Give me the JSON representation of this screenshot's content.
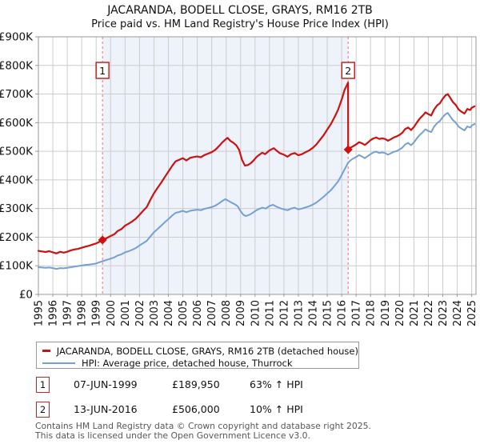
{
  "title": "JACARANDA, BODELL CLOSE, GRAYS, RM16 2TB",
  "subtitle": "Price paid vs. HM Land Registry's House Price Index (HPI)",
  "colors": {
    "property_line": "#cc1111",
    "hpi_line": "#74a0d4",
    "sale_dashed_line": "#f38080",
    "band_fill": "#eef2fb",
    "grid": "#cccccc",
    "frame": "#999999",
    "marker_box_border": "#c22222",
    "footer_text": "#575757"
  },
  "chart_data": {
    "type": "line",
    "title": "JACARANDA, BODELL CLOSE, GRAYS, RM16 2TB — Price paid vs. HPI",
    "xlabel": "",
    "ylabel": "",
    "x_range": [
      1995,
      2025.3
    ],
    "ylim": [
      0,
      900000
    ],
    "grid": true,
    "legend_position": "bottom",
    "y_tick_values": [
      0,
      100,
      200,
      300,
      400,
      500,
      600,
      700,
      800,
      900
    ],
    "y_tick_labels": [
      "£0",
      "£100K",
      "£200K",
      "£300K",
      "£400K",
      "£500K",
      "£600K",
      "£700K",
      "£800K",
      "£900K"
    ],
    "x_ticks": [
      1995,
      1996,
      1997,
      1998,
      1999,
      2000,
      2001,
      2002,
      2003,
      2004,
      2005,
      2006,
      2007,
      2008,
      2009,
      2010,
      2011,
      2012,
      2013,
      2014,
      2015,
      2016,
      2017,
      2018,
      2019,
      2020,
      2021,
      2022,
      2023,
      2024,
      2025
    ],
    "band": {
      "from": 1999.44,
      "to": 2016.45
    },
    "value_unit": "GBP thousands",
    "series": [
      {
        "name": "JACARANDA, BODELL CLOSE, GRAYS, RM16 2TB (detached house)",
        "color": "#cc1111",
        "points": [
          [
            1995.0,
            152
          ],
          [
            1995.25,
            150
          ],
          [
            1995.5,
            148
          ],
          [
            1995.75,
            151
          ],
          [
            1996.0,
            147
          ],
          [
            1996.25,
            143
          ],
          [
            1996.5,
            149
          ],
          [
            1996.75,
            146
          ],
          [
            1997.0,
            149
          ],
          [
            1997.25,
            154
          ],
          [
            1997.5,
            157
          ],
          [
            1997.75,
            159
          ],
          [
            1998.0,
            163
          ],
          [
            1998.25,
            167
          ],
          [
            1998.5,
            170
          ],
          [
            1998.75,
            174
          ],
          [
            1999.0,
            178
          ],
          [
            1999.2,
            183
          ],
          [
            1999.44,
            190
          ],
          [
            1999.7,
            196
          ],
          [
            2000.0,
            204
          ],
          [
            2000.25,
            210
          ],
          [
            2000.5,
            222
          ],
          [
            2000.75,
            228
          ],
          [
            2001.0,
            240
          ],
          [
            2001.25,
            247
          ],
          [
            2001.5,
            255
          ],
          [
            2001.75,
            265
          ],
          [
            2002.0,
            278
          ],
          [
            2002.25,
            292
          ],
          [
            2002.5,
            305
          ],
          [
            2002.75,
            330
          ],
          [
            2003.0,
            353
          ],
          [
            2003.25,
            372
          ],
          [
            2003.5,
            390
          ],
          [
            2003.75,
            410
          ],
          [
            2004.0,
            429
          ],
          [
            2004.25,
            448
          ],
          [
            2004.5,
            465
          ],
          [
            2004.75,
            470
          ],
          [
            2005.0,
            476
          ],
          [
            2005.25,
            468
          ],
          [
            2005.5,
            477
          ],
          [
            2005.75,
            480
          ],
          [
            2006.0,
            482
          ],
          [
            2006.25,
            479
          ],
          [
            2006.5,
            487
          ],
          [
            2006.75,
            492
          ],
          [
            2007.0,
            497
          ],
          [
            2007.25,
            505
          ],
          [
            2007.5,
            518
          ],
          [
            2007.75,
            532
          ],
          [
            2007.95,
            541
          ],
          [
            2008.1,
            547
          ],
          [
            2008.3,
            536
          ],
          [
            2008.5,
            530
          ],
          [
            2008.7,
            521
          ],
          [
            2008.9,
            505
          ],
          [
            2009.1,
            470
          ],
          [
            2009.3,
            450
          ],
          [
            2009.5,
            452
          ],
          [
            2009.7,
            458
          ],
          [
            2009.9,
            468
          ],
          [
            2010.1,
            480
          ],
          [
            2010.3,
            488
          ],
          [
            2010.5,
            495
          ],
          [
            2010.7,
            490
          ],
          [
            2011.0,
            503
          ],
          [
            2011.3,
            511
          ],
          [
            2011.5,
            502
          ],
          [
            2011.7,
            494
          ],
          [
            2012.0,
            488
          ],
          [
            2012.25,
            481
          ],
          [
            2012.5,
            490
          ],
          [
            2012.75,
            494
          ],
          [
            2013.0,
            486
          ],
          [
            2013.25,
            490
          ],
          [
            2013.5,
            497
          ],
          [
            2013.75,
            503
          ],
          [
            2014.0,
            512
          ],
          [
            2014.25,
            524
          ],
          [
            2014.5,
            540
          ],
          [
            2014.75,
            556
          ],
          [
            2015.0,
            576
          ],
          [
            2015.25,
            595
          ],
          [
            2015.5,
            619
          ],
          [
            2015.75,
            645
          ],
          [
            2016.0,
            681
          ],
          [
            2016.2,
            714
          ],
          [
            2016.44,
            740
          ],
          [
            2016.45,
            506
          ],
          [
            2016.6,
            512
          ],
          [
            2016.8,
            518
          ],
          [
            2017.0,
            524
          ],
          [
            2017.2,
            532
          ],
          [
            2017.4,
            528
          ],
          [
            2017.6,
            522
          ],
          [
            2017.8,
            530
          ],
          [
            2018.0,
            539
          ],
          [
            2018.2,
            545
          ],
          [
            2018.4,
            548
          ],
          [
            2018.6,
            543
          ],
          [
            2018.8,
            545
          ],
          [
            2019.0,
            543
          ],
          [
            2019.2,
            537
          ],
          [
            2019.4,
            542
          ],
          [
            2019.6,
            548
          ],
          [
            2019.8,
            552
          ],
          [
            2020.0,
            557
          ],
          [
            2020.2,
            565
          ],
          [
            2020.4,
            578
          ],
          [
            2020.6,
            583
          ],
          [
            2020.8,
            574
          ],
          [
            2021.0,
            585
          ],
          [
            2021.2,
            600
          ],
          [
            2021.4,
            614
          ],
          [
            2021.6,
            624
          ],
          [
            2021.8,
            636
          ],
          [
            2022.0,
            630
          ],
          [
            2022.2,
            625
          ],
          [
            2022.4,
            646
          ],
          [
            2022.6,
            660
          ],
          [
            2022.8,
            668
          ],
          [
            2023.0,
            684
          ],
          [
            2023.2,
            696
          ],
          [
            2023.35,
            700
          ],
          [
            2023.5,
            688
          ],
          [
            2023.7,
            672
          ],
          [
            2023.9,
            662
          ],
          [
            2024.1,
            646
          ],
          [
            2024.3,
            638
          ],
          [
            2024.5,
            632
          ],
          [
            2024.7,
            648
          ],
          [
            2024.9,
            644
          ],
          [
            2025.0,
            652
          ],
          [
            2025.2,
            657
          ]
        ]
      },
      {
        "name": "HPI: Average price, detached house, Thurrock",
        "color": "#74a0d4",
        "points": [
          [
            1995.0,
            95
          ],
          [
            1995.25,
            94
          ],
          [
            1995.5,
            93
          ],
          [
            1995.75,
            94
          ],
          [
            1996.0,
            92
          ],
          [
            1996.25,
            89
          ],
          [
            1996.5,
            92
          ],
          [
            1996.75,
            91
          ],
          [
            1997.0,
            93
          ],
          [
            1997.25,
            95
          ],
          [
            1997.5,
            97
          ],
          [
            1997.75,
            99
          ],
          [
            1998.0,
            101
          ],
          [
            1998.25,
            103
          ],
          [
            1998.5,
            104
          ],
          [
            1998.75,
            106
          ],
          [
            1999.0,
            108
          ],
          [
            1999.2,
            112
          ],
          [
            1999.44,
            116
          ],
          [
            1999.7,
            120
          ],
          [
            2000.0,
            125
          ],
          [
            2000.25,
            129
          ],
          [
            2000.5,
            136
          ],
          [
            2000.75,
            140
          ],
          [
            2001.0,
            147
          ],
          [
            2001.25,
            151
          ],
          [
            2001.5,
            156
          ],
          [
            2001.75,
            162
          ],
          [
            2002.0,
            171
          ],
          [
            2002.25,
            179
          ],
          [
            2002.5,
            187
          ],
          [
            2002.75,
            202
          ],
          [
            2003.0,
            217
          ],
          [
            2003.25,
            228
          ],
          [
            2003.5,
            240
          ],
          [
            2003.75,
            252
          ],
          [
            2004.0,
            263
          ],
          [
            2004.25,
            275
          ],
          [
            2004.5,
            285
          ],
          [
            2004.75,
            288
          ],
          [
            2005.0,
            292
          ],
          [
            2005.25,
            287
          ],
          [
            2005.5,
            292
          ],
          [
            2005.75,
            294
          ],
          [
            2006.0,
            296
          ],
          [
            2006.25,
            294
          ],
          [
            2006.5,
            299
          ],
          [
            2006.75,
            302
          ],
          [
            2007.0,
            305
          ],
          [
            2007.25,
            310
          ],
          [
            2007.5,
            318
          ],
          [
            2007.75,
            327
          ],
          [
            2007.95,
            333
          ],
          [
            2008.15,
            327
          ],
          [
            2008.4,
            320
          ],
          [
            2008.6,
            315
          ],
          [
            2008.8,
            308
          ],
          [
            2009.0,
            291
          ],
          [
            2009.2,
            278
          ],
          [
            2009.35,
            274
          ],
          [
            2009.55,
            277
          ],
          [
            2009.75,
            282
          ],
          [
            2010.0,
            291
          ],
          [
            2010.25,
            298
          ],
          [
            2010.5,
            303
          ],
          [
            2010.75,
            300
          ],
          [
            2011.0,
            309
          ],
          [
            2011.25,
            313
          ],
          [
            2011.5,
            306
          ],
          [
            2011.75,
            301
          ],
          [
            2012.0,
            297
          ],
          [
            2012.25,
            294
          ],
          [
            2012.5,
            300
          ],
          [
            2012.75,
            303
          ],
          [
            2013.0,
            297
          ],
          [
            2013.25,
            300
          ],
          [
            2013.5,
            304
          ],
          [
            2013.75,
            308
          ],
          [
            2014.0,
            314
          ],
          [
            2014.25,
            321
          ],
          [
            2014.5,
            331
          ],
          [
            2014.75,
            341
          ],
          [
            2015.0,
            353
          ],
          [
            2015.25,
            364
          ],
          [
            2015.5,
            379
          ],
          [
            2015.75,
            395
          ],
          [
            2016.0,
            417
          ],
          [
            2016.2,
            437
          ],
          [
            2016.45,
            460
          ],
          [
            2016.6,
            468
          ],
          [
            2016.8,
            475
          ],
          [
            2017.0,
            480
          ],
          [
            2017.2,
            487
          ],
          [
            2017.4,
            482
          ],
          [
            2017.6,
            476
          ],
          [
            2017.8,
            483
          ],
          [
            2018.0,
            490
          ],
          [
            2018.2,
            496
          ],
          [
            2018.4,
            499
          ],
          [
            2018.6,
            494
          ],
          [
            2018.8,
            496
          ],
          [
            2019.0,
            494
          ],
          [
            2019.2,
            488
          ],
          [
            2019.4,
            493
          ],
          [
            2019.6,
            498
          ],
          [
            2019.8,
            501
          ],
          [
            2020.0,
            506
          ],
          [
            2020.2,
            513
          ],
          [
            2020.4,
            524
          ],
          [
            2020.6,
            529
          ],
          [
            2020.8,
            521
          ],
          [
            2021.0,
            531
          ],
          [
            2021.2,
            545
          ],
          [
            2021.4,
            557
          ],
          [
            2021.6,
            566
          ],
          [
            2021.8,
            577
          ],
          [
            2022.0,
            571
          ],
          [
            2022.2,
            567
          ],
          [
            2022.4,
            586
          ],
          [
            2022.6,
            598
          ],
          [
            2022.8,
            606
          ],
          [
            2023.0,
            620
          ],
          [
            2023.2,
            630
          ],
          [
            2023.35,
            634
          ],
          [
            2023.5,
            623
          ],
          [
            2023.7,
            609
          ],
          [
            2023.9,
            600
          ],
          [
            2024.1,
            586
          ],
          [
            2024.3,
            579
          ],
          [
            2024.5,
            573
          ],
          [
            2024.7,
            587
          ],
          [
            2024.9,
            583
          ],
          [
            2025.0,
            590
          ],
          [
            2025.2,
            595
          ]
        ]
      }
    ],
    "markers": [
      {
        "label": "1",
        "year": 1999.44,
        "value": 190
      },
      {
        "label": "2",
        "year": 2016.45,
        "value": 506
      }
    ]
  },
  "legend": {
    "items": [
      "JACARANDA, BODELL CLOSE, GRAYS, RM16 2TB (detached house)",
      "HPI: Average price, detached house, Thurrock"
    ]
  },
  "annotations": [
    {
      "num": "1",
      "date": "07-JUN-1999",
      "price": "£189,950",
      "hpi_delta": "63% ↑ HPI"
    },
    {
      "num": "2",
      "date": "13-JUN-2016",
      "price": "£506,000",
      "hpi_delta": "10% ↑ HPI"
    }
  ],
  "footer": {
    "line1": "Contains HM Land Registry data © Crown copyright and database right 2025.",
    "line2": "This data is licensed under the Open Government Licence v3.0."
  }
}
